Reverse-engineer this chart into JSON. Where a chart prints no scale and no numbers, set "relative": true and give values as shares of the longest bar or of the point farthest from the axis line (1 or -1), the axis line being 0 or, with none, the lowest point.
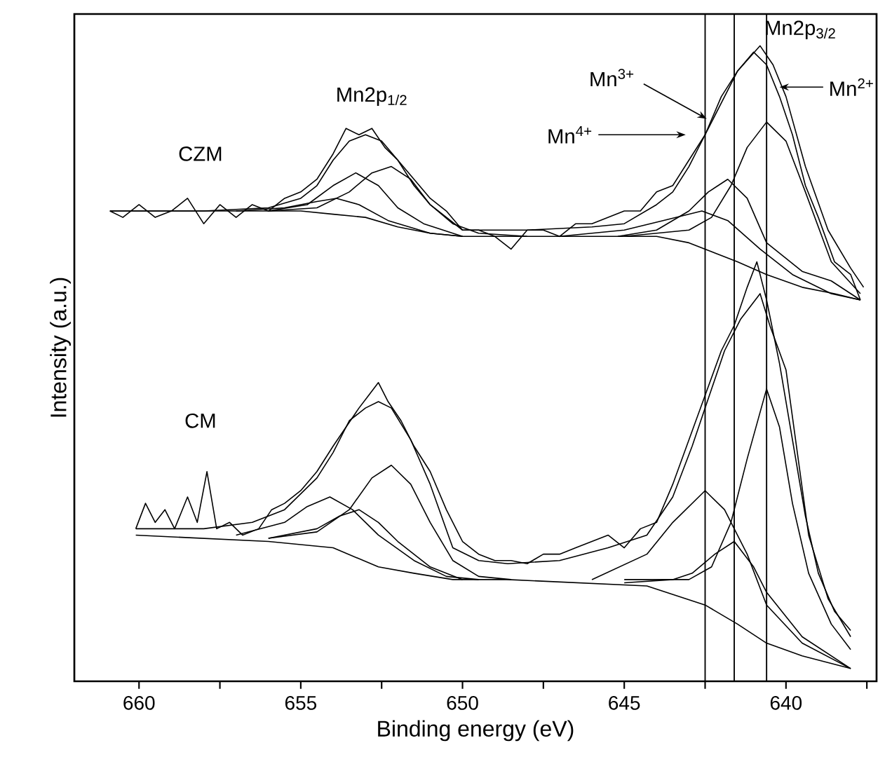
{
  "chart_data": {
    "type": "line",
    "relative": true,
    "xlabel": "Binding energy (eV)",
    "ylabel": "Intensity (a.u.)",
    "xlim": [
      662,
      637.2
    ],
    "xticks": [
      660,
      {
        "value": 657.5,
        "label": null
      },
      655,
      {
        "value": 652.5,
        "label": null
      },
      650,
      {
        "value": 647.5,
        "label": null
      },
      645,
      {
        "value": 642.5,
        "label": null
      },
      640,
      {
        "value": 637.5,
        "label": null
      }
    ],
    "tick_labels": "x",
    "grid": false,
    "ref_lines": [
      {
        "axis": "x",
        "value": 642.5,
        "color": "#000000"
      },
      {
        "axis": "x",
        "value": 641.6,
        "color": "#000000"
      },
      {
        "axis": "x",
        "value": 640.6,
        "color": "#000000"
      }
    ],
    "annotations": [
      "CZM",
      "CM",
      "Mn2p$_{1/2}$",
      "Mn2p$_{3/2}$",
      "Mn$^{3+}$",
      "Mn$^{4+}$",
      "Mn$^{2+}$"
    ],
    "series": [
      {
        "color": "#000000",
        "x": [
          660.9,
          660.5,
          660,
          659.5,
          659,
          658.5,
          658,
          657.5,
          657,
          656.5,
          656,
          655.5,
          655,
          654.5,
          654,
          653.6,
          653.2,
          652.8,
          652.4,
          652,
          651.5,
          651,
          650.5,
          650,
          649.5,
          649,
          648.5,
          648,
          647.5,
          647,
          646.5,
          646,
          645.5,
          645,
          644.5,
          644,
          643.5,
          643,
          642.5,
          642,
          641.5,
          641,
          640.6,
          640.2,
          639.8,
          639.4,
          639,
          638.5,
          638,
          637.7
        ],
        "values": [
          0.74,
          0.73,
          0.75,
          0.73,
          0.74,
          0.76,
          0.72,
          0.75,
          0.73,
          0.75,
          0.74,
          0.76,
          0.77,
          0.79,
          0.83,
          0.87,
          0.86,
          0.87,
          0.84,
          0.82,
          0.79,
          0.76,
          0.74,
          0.71,
          0.71,
          0.7,
          0.68,
          0.71,
          0.71,
          0.7,
          0.72,
          0.72,
          0.73,
          0.74,
          0.74,
          0.77,
          0.78,
          0.82,
          0.86,
          0.91,
          0.96,
          0.99,
          0.97,
          0.92,
          0.86,
          0.78,
          0.73,
          0.66,
          0.64,
          0.6
        ]
      },
      {
        "color": "#000000",
        "x": [
          660.9,
          658,
          656,
          655,
          654.5,
          654,
          653.5,
          653,
          652.5,
          652,
          651.5,
          651,
          650.5,
          650,
          648,
          646,
          645,
          644,
          643.5,
          643,
          642.5,
          642,
          641.5,
          640.8,
          640.4,
          640,
          639.4,
          638.7,
          638,
          637.6
        ],
        "values": [
          0.74,
          0.74,
          0.745,
          0.76,
          0.78,
          0.82,
          0.85,
          0.86,
          0.85,
          0.82,
          0.78,
          0.75,
          0.73,
          0.71,
          0.71,
          0.715,
          0.72,
          0.75,
          0.77,
          0.81,
          0.86,
          0.92,
          0.96,
          1.0,
          0.97,
          0.92,
          0.81,
          0.71,
          0.65,
          0.62
        ]
      },
      {
        "color": "#000000",
        "x": [
          660.9,
          656,
          655,
          654,
          653,
          652,
          651,
          650,
          646,
          644,
          643,
          642.5,
          641.5,
          640.6,
          639.5,
          638.5,
          637.7
        ],
        "values": [
          0.74,
          0.74,
          0.74,
          0.735,
          0.73,
          0.715,
          0.705,
          0.7,
          0.7,
          0.7,
          0.69,
          0.68,
          0.66,
          0.64,
          0.62,
          0.61,
          0.6
        ]
      },
      {
        "color": "#000000",
        "x": [
          656,
          654.5,
          653.5,
          652.8,
          652.2,
          651.6,
          651,
          650.3,
          649.5,
          648
        ],
        "values": [
          0.74,
          0.745,
          0.77,
          0.8,
          0.81,
          0.79,
          0.75,
          0.72,
          0.705,
          0.7
        ]
      },
      {
        "color": "#000000",
        "x": [
          656,
          654.8,
          654,
          653.3,
          652.6,
          652,
          651.2,
          650
        ],
        "values": [
          0.74,
          0.75,
          0.78,
          0.8,
          0.78,
          0.745,
          0.72,
          0.7
        ]
      },
      {
        "color": "#000000",
        "x": [
          657,
          655.5,
          654.5,
          653.9,
          653.2,
          652.3,
          651,
          650
        ],
        "values": [
          0.74,
          0.745,
          0.755,
          0.76,
          0.75,
          0.725,
          0.705,
          0.7
        ]
      },
      {
        "color": "#000000",
        "x": [
          645,
          643,
          642.3,
          641.7,
          641.2,
          640.6,
          640,
          639.4,
          638.6,
          637.7
        ],
        "values": [
          0.7,
          0.71,
          0.73,
          0.78,
          0.84,
          0.88,
          0.85,
          0.77,
          0.66,
          0.61
        ]
      },
      {
        "color": "#000000",
        "x": [
          645.2,
          644,
          643,
          642.4,
          641.8,
          641.2,
          640.6,
          639.5,
          638.6,
          637.7
        ],
        "values": [
          0.7,
          0.71,
          0.74,
          0.77,
          0.79,
          0.76,
          0.69,
          0.645,
          0.63,
          0.6
        ]
      },
      {
        "color": "#000000",
        "x": [
          647,
          645,
          643.8,
          642.6,
          641.8,
          640.8,
          639.8,
          638.6,
          637.7
        ],
        "values": [
          0.7,
          0.71,
          0.725,
          0.74,
          0.725,
          0.68,
          0.64,
          0.61,
          0.6
        ]
      },
      {
        "color": "#000000",
        "x": [
          660.1,
          659.8,
          659.5,
          659.2,
          658.9,
          658.5,
          658.2,
          657.9,
          657.6,
          657.2,
          656.8,
          656.3,
          655.9,
          655.5,
          655,
          654.5,
          654,
          653.6,
          653.2,
          652.9,
          652.6,
          652.3,
          651.9,
          651.5,
          651,
          650.5,
          650,
          649.5,
          649,
          648.5,
          648,
          647.5,
          647,
          646.5,
          646,
          645.5,
          645,
          644.5,
          644,
          643.5,
          643,
          642.5,
          642,
          641.6,
          641.2,
          640.9,
          640.6,
          640.2,
          639.8,
          639.4,
          639,
          638.5,
          638
        ],
        "values": [
          0.24,
          0.28,
          0.25,
          0.27,
          0.24,
          0.29,
          0.25,
          0.33,
          0.24,
          0.25,
          0.23,
          0.24,
          0.27,
          0.28,
          0.3,
          0.33,
          0.37,
          0.4,
          0.43,
          0.45,
          0.47,
          0.44,
          0.41,
          0.37,
          0.33,
          0.27,
          0.22,
          0.2,
          0.19,
          0.19,
          0.185,
          0.2,
          0.2,
          0.21,
          0.22,
          0.23,
          0.21,
          0.24,
          0.25,
          0.31,
          0.38,
          0.45,
          0.52,
          0.56,
          0.62,
          0.66,
          0.6,
          0.5,
          0.38,
          0.26,
          0.17,
          0.11,
          0.08
        ]
      },
      {
        "color": "#000000",
        "x": [
          660.1,
          658,
          656.5,
          655.5,
          654.5,
          654,
          653.5,
          653,
          652.6,
          652.2,
          651.6,
          651,
          650.3,
          649.5,
          648.6,
          647,
          645.5,
          644.3,
          643.5,
          642.9,
          642.5,
          641.9,
          641.4,
          640.8,
          640.5,
          640,
          639.3,
          638.7,
          638
        ],
        "values": [
          0.24,
          0.24,
          0.25,
          0.27,
          0.32,
          0.36,
          0.41,
          0.43,
          0.44,
          0.43,
          0.38,
          0.31,
          0.21,
          0.19,
          0.185,
          0.19,
          0.21,
          0.23,
          0.29,
          0.37,
          0.43,
          0.52,
          0.57,
          0.61,
          0.56,
          0.49,
          0.23,
          0.13,
          0.07
        ]
      },
      {
        "color": "#000000",
        "x": [
          660.1,
          656,
          654,
          652.6,
          651.5,
          650.3,
          648.6,
          644.3,
          642.5,
          641.5,
          640.6,
          639.5,
          638
        ],
        "values": [
          0.23,
          0.22,
          0.21,
          0.18,
          0.17,
          0.16,
          0.16,
          0.15,
          0.12,
          0.09,
          0.06,
          0.04,
          0.02
        ]
      },
      {
        "color": "#000000",
        "x": [
          656,
          654.5,
          653.5,
          652.8,
          652.2,
          651.6,
          651,
          650.3,
          649.5,
          648.5
        ],
        "values": [
          0.225,
          0.235,
          0.27,
          0.32,
          0.34,
          0.31,
          0.25,
          0.19,
          0.165,
          0.16
        ]
      },
      {
        "color": "#000000",
        "x": [
          657,
          655.5,
          654.8,
          654.1,
          653.4,
          652.6,
          651.5,
          650.5,
          649.5
        ],
        "values": [
          0.23,
          0.25,
          0.275,
          0.29,
          0.27,
          0.23,
          0.19,
          0.165,
          0.16
        ]
      },
      {
        "color": "#000000",
        "x": [
          656,
          654.5,
          653.8,
          653.2,
          652.6,
          652,
          651,
          650
        ],
        "values": [
          0.225,
          0.24,
          0.26,
          0.27,
          0.25,
          0.22,
          0.18,
          0.16
        ]
      },
      {
        "color": "#000000",
        "x": [
          645,
          643,
          642.3,
          641.7,
          641.2,
          640.6,
          640.2,
          639.8,
          639.3,
          638.6,
          638
        ],
        "values": [
          0.16,
          0.16,
          0.18,
          0.25,
          0.35,
          0.46,
          0.4,
          0.28,
          0.17,
          0.09,
          0.05
        ]
      },
      {
        "color": "#000000",
        "x": [
          646,
          644.3,
          643.5,
          642.5,
          641.9,
          641.2,
          640.6,
          639.5,
          638
        ],
        "values": [
          0.16,
          0.2,
          0.25,
          0.3,
          0.27,
          0.2,
          0.12,
          0.06,
          0.02
        ]
      },
      {
        "color": "#000000",
        "x": [
          645,
          643.5,
          642.9,
          642.2,
          641.6,
          641,
          640.6,
          639.5,
          638
        ],
        "values": [
          0.155,
          0.16,
          0.17,
          0.2,
          0.22,
          0.18,
          0.14,
          0.07,
          0.02
        ]
      }
    ]
  }
}
